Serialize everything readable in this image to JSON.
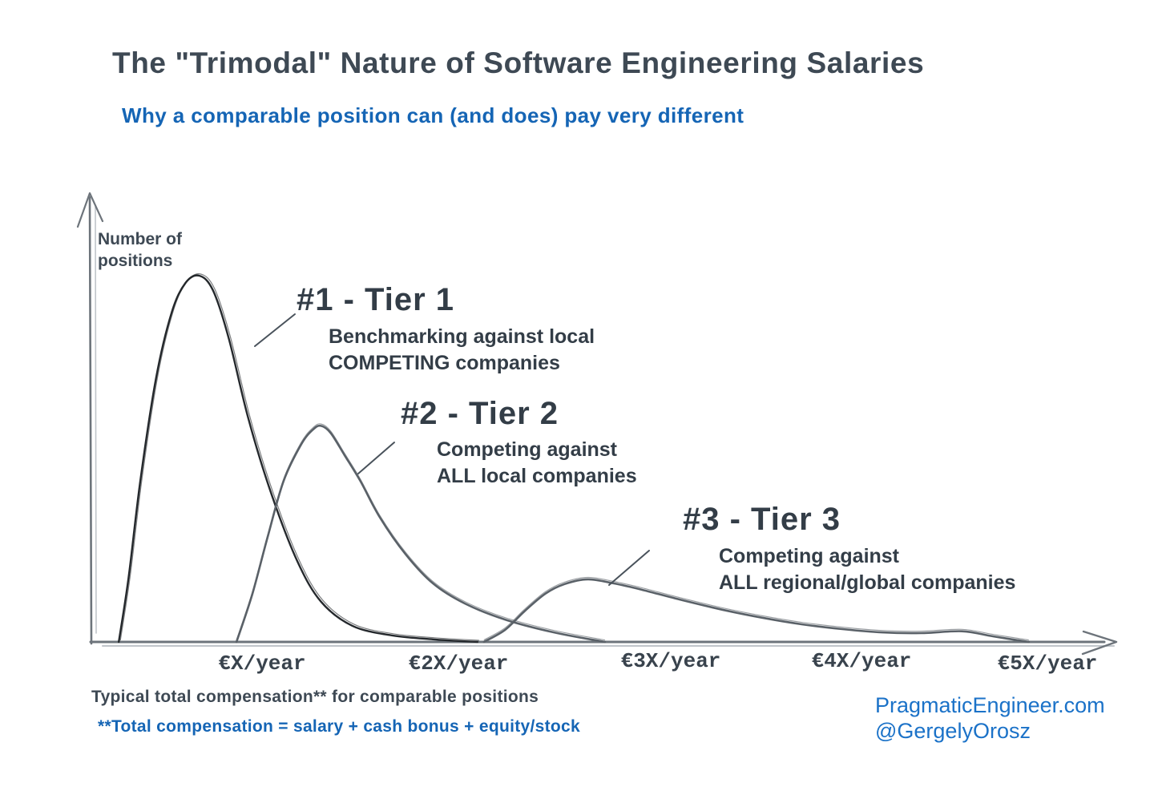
{
  "header": {
    "title": "The \"Trimodal\" Nature of Software Engineering Salaries",
    "subtitle": "Why a comparable position can (and does) pay very different"
  },
  "axes": {
    "y_label_line1": "Number of",
    "y_label_line2": "positions",
    "caption": "Typical total compensation** for comparable positions",
    "footnote": "**Total compensation = salary + cash bonus + equity/stock"
  },
  "annotations": [
    {
      "heading": "#1 - Tier 1",
      "line1": "Benchmarking against local",
      "line2": "COMPETING companies"
    },
    {
      "heading": "#2 - Tier 2",
      "line1": "Competing against",
      "line2": "ALL local companies"
    },
    {
      "heading": "#3 - Tier 3",
      "line1": "Competing against",
      "line2": "ALL regional/global companies"
    }
  ],
  "attribution": {
    "site": "PragmaticEngineer.com",
    "handle": "@GergelyOrosz"
  },
  "colors": {
    "ink": "#3e4954",
    "hand_blue": "#1565b5",
    "attribution_blue": "#1b72c8",
    "curve1": "#24282c",
    "curve2": "#5a6168",
    "curve3": "#5a6168",
    "axis": "#6d747b",
    "axis_light": "#c0c5ca",
    "leader": "#49525b"
  },
  "chart_data": {
    "type": "line",
    "title": "The \"Trimodal\" Nature of Software Engineering Salaries",
    "subtitle": "Why a comparable position can (and does) pay very different",
    "xlabel": "Typical total compensation** for comparable positions",
    "ylabel": "Number of positions",
    "x_tick_labels": [
      "€X/year",
      "€2X/year",
      "€3X/year",
      "€4X/year",
      "€5X/year"
    ],
    "x_tick_values": [
      1,
      2,
      3,
      4,
      5
    ],
    "xlim": [
      0,
      5.5
    ],
    "ylim": [
      0,
      1.1
    ],
    "grid": false,
    "legend": false,
    "y_unit": "relative number of positions (Tier 1 peak = 1.0)",
    "series": [
      {
        "name": "#1 - Tier 1",
        "description": "Benchmarking against local COMPETING companies",
        "peak": [
          0.68,
          1.0
        ],
        "points": [
          [
            0.27,
            0
          ],
          [
            0.32,
            0.175
          ],
          [
            0.38,
            0.44
          ],
          [
            0.46,
            0.72
          ],
          [
            0.54,
            0.9
          ],
          [
            0.61,
            0.98
          ],
          [
            0.68,
            1.0
          ],
          [
            0.75,
            0.96
          ],
          [
            0.83,
            0.83
          ],
          [
            0.93,
            0.61
          ],
          [
            1.05,
            0.4
          ],
          [
            1.18,
            0.22
          ],
          [
            1.3,
            0.11
          ],
          [
            1.46,
            0.044
          ],
          [
            1.66,
            0.018
          ],
          [
            1.87,
            0.007
          ],
          [
            2.09,
            0
          ]
        ]
      },
      {
        "name": "#2 - Tier 2",
        "description": "Competing against ALL local companies",
        "peak": [
          1.3,
          0.59
        ],
        "points": [
          [
            0.87,
            0
          ],
          [
            0.95,
            0.13
          ],
          [
            1.03,
            0.29
          ],
          [
            1.11,
            0.44
          ],
          [
            1.2,
            0.54
          ],
          [
            1.26,
            0.58
          ],
          [
            1.3,
            0.59
          ],
          [
            1.35,
            0.57
          ],
          [
            1.42,
            0.51
          ],
          [
            1.5,
            0.44
          ],
          [
            1.6,
            0.34
          ],
          [
            1.73,
            0.24
          ],
          [
            1.87,
            0.16
          ],
          [
            2.03,
            0.105
          ],
          [
            2.22,
            0.061
          ],
          [
            2.45,
            0.026
          ],
          [
            2.69,
            0
          ]
        ]
      },
      {
        "name": "#3 - Tier 3",
        "description": "Competing against ALL regional/global companies",
        "peak": [
          2.61,
          0.17
        ],
        "points": [
          [
            2.12,
            0
          ],
          [
            2.22,
            0.033
          ],
          [
            2.31,
            0.083
          ],
          [
            2.41,
            0.132
          ],
          [
            2.5,
            0.158
          ],
          [
            2.61,
            0.171
          ],
          [
            2.73,
            0.16
          ],
          [
            2.86,
            0.143
          ],
          [
            3.06,
            0.114
          ],
          [
            3.27,
            0.088
          ],
          [
            3.48,
            0.066
          ],
          [
            3.69,
            0.048
          ],
          [
            3.9,
            0.035
          ],
          [
            4.11,
            0.026
          ],
          [
            4.32,
            0.024
          ],
          [
            4.54,
            0.029
          ],
          [
            4.71,
            0.015
          ],
          [
            4.9,
            0
          ]
        ]
      }
    ]
  }
}
